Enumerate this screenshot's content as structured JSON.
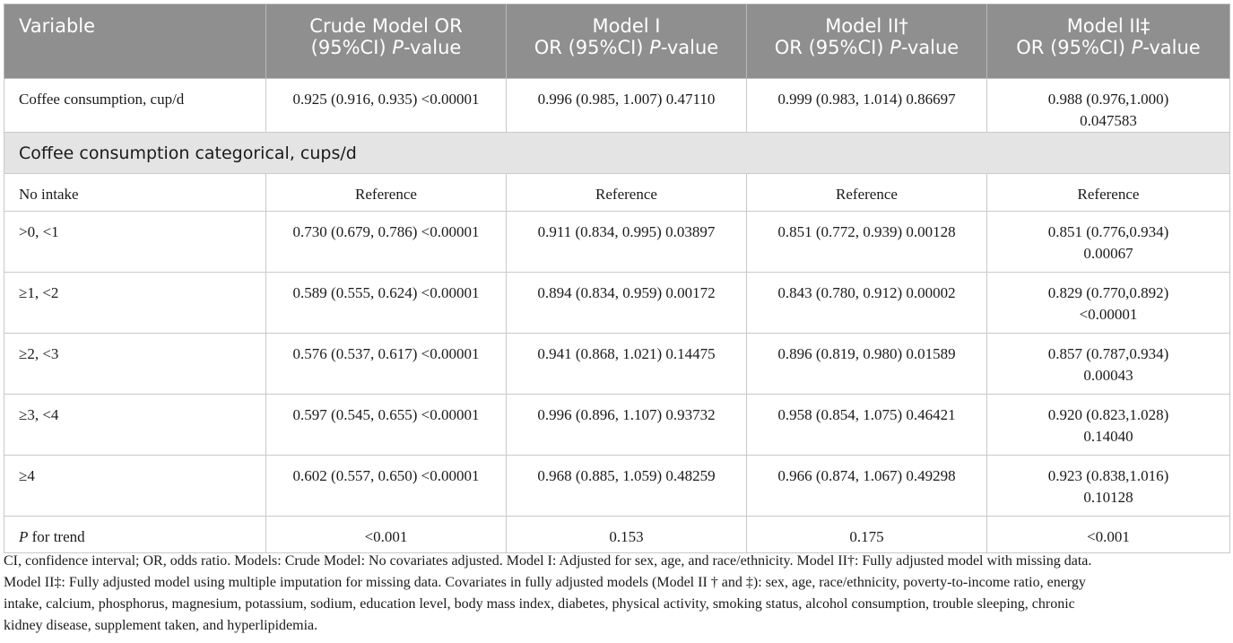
{
  "header": {
    "variable": "Variable",
    "crude": {
      "line1": "Crude Model OR",
      "line2a": "(95%CI) ",
      "p": "P",
      "line2b": "-value"
    },
    "model1": {
      "line1": "Model I",
      "line2a": "OR (95%CI) ",
      "p": "P",
      "line2b": "-value"
    },
    "model2a": {
      "line1": "Model II†",
      "line2a": "OR (95%CI) ",
      "p": "P",
      "line2b": "-value"
    },
    "model2b": {
      "line1": "Model II‡",
      "line2a": "OR (95%CI) ",
      "p": "P",
      "line2b": "-value"
    }
  },
  "continuous_row": {
    "label": "Coffee consumption, cup/d",
    "crude": "0.925 (0.916, 0.935) <0.00001",
    "model1": "0.996 (0.985, 1.007) 0.47110",
    "model2a": "0.999 (0.983, 1.014) 0.86697",
    "model2b_line1": "0.988 (0.976,1.000)",
    "model2b_line2": "0.047583"
  },
  "section_label": "Coffee consumption categorical, cups/d",
  "reference_row": {
    "label": "No intake",
    "crude": "Reference",
    "model1": "Reference",
    "model2a": "Reference",
    "model2b": "Reference"
  },
  "rows": [
    {
      "label": ">0, <1",
      "crude": "0.730 (0.679, 0.786) <0.00001",
      "model1": "0.911 (0.834, 0.995) 0.03897",
      "model2a": "0.851 (0.772, 0.939) 0.00128",
      "model2b_line1": "0.851 (0.776,0.934)",
      "model2b_line2": "0.00067"
    },
    {
      "label": "≥1, <2",
      "crude": "0.589 (0.555, 0.624) <0.00001",
      "model1": "0.894 (0.834, 0.959) 0.00172",
      "model2a": "0.843 (0.780, 0.912) 0.00002",
      "model2b_line1": "0.829 (0.770,0.892)",
      "model2b_line2": "<0.00001"
    },
    {
      "label": "≥2, <3",
      "crude": "0.576 (0.537, 0.617) <0.00001",
      "model1": "0.941 (0.868, 1.021) 0.14475",
      "model2a": "0.896 (0.819, 0.980) 0.01589",
      "model2b_line1": "0.857 (0.787,0.934)",
      "model2b_line2": "0.00043"
    },
    {
      "label": "≥3, <4",
      "crude": "0.597 (0.545, 0.655) <0.00001",
      "model1": "0.996 (0.896, 1.107) 0.93732",
      "model2a": "0.958 (0.854, 1.075) 0.46421",
      "model2b_line1": "0.920 (0.823,1.028)",
      "model2b_line2": "0.14040"
    },
    {
      "label": "≥4",
      "crude": "0.602 (0.557, 0.650) <0.00001",
      "model1": "0.968 (0.885, 1.059) 0.48259",
      "model2a": "0.966 (0.874, 1.067) 0.49298",
      "model2b_line1": "0.923 (0.838,1.016)",
      "model2b_line2": "0.10128"
    }
  ],
  "trend_row": {
    "label_p": "P",
    "label_rest": " for trend",
    "crude": "<0.001",
    "model1": "0.153",
    "model2a": "0.175",
    "model2b": "<0.001"
  },
  "footnote": {
    "line1": "CI, confidence interval; OR, odds ratio. Models: Crude Model: No covariates adjusted. Model I: Adjusted for sex, age, and race/ethnicity. Model II†: Fully adjusted model with missing data.",
    "line2": "Model II‡: Fully adjusted model using multiple imputation for missing data. Covariates in fully adjusted models (Model II † and ‡): sex, age, race/ethnicity, poverty-to-income ratio, energy",
    "line3": "intake, calcium, phosphorus, magnesium, potassium, sodium, education level, body mass index, diabetes, physical activity, smoking status, alcohol consumption, trouble sleeping, chronic",
    "line4": "kidney disease, supplement taken, and hyperlipidemia."
  }
}
